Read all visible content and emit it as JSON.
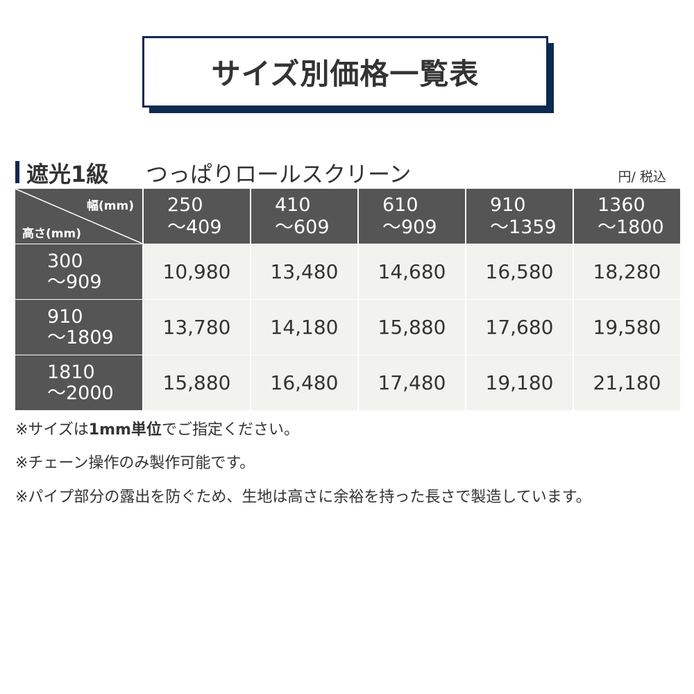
{
  "title": "サイズ別価格一覧表",
  "section": {
    "grade": "遮光1級",
    "product": "つっぱりロールスクリーン",
    "unit": "円/ 税込"
  },
  "colors": {
    "navy": "#0d2a50",
    "header_bg": "#555555",
    "cell_bg": "#f2f2ee"
  },
  "table": {
    "corner_width_label": "幅(mm)",
    "corner_height_label": "高さ(mm)",
    "columns": [
      {
        "from": "250",
        "to": "～409"
      },
      {
        "from": "410",
        "to": "～609"
      },
      {
        "from": "610",
        "to": "～909"
      },
      {
        "from": "910",
        "to": "～1359"
      },
      {
        "from": "1360",
        "to": "～1800"
      }
    ],
    "rows": [
      {
        "from": "300",
        "to": "～909",
        "prices": [
          "10,980",
          "13,480",
          "14,680",
          "16,580",
          "18,280"
        ]
      },
      {
        "from": "910",
        "to": "～1809",
        "prices": [
          "13,780",
          "14,180",
          "15,880",
          "17,680",
          "19,580"
        ]
      },
      {
        "from": "1810",
        "to": "～2000",
        "prices": [
          "15,880",
          "16,480",
          "17,480",
          "19,180",
          "21,180"
        ]
      }
    ]
  },
  "notes": {
    "n1_pre": "※サイズは",
    "n1_bold": "1mm単位",
    "n1_post": "でご指定ください。",
    "n2": "※チェーン操作のみ製作可能です。",
    "n3": "※パイプ部分の露出を防ぐため、生地は高さに余裕を持った長さで製造しています。"
  }
}
